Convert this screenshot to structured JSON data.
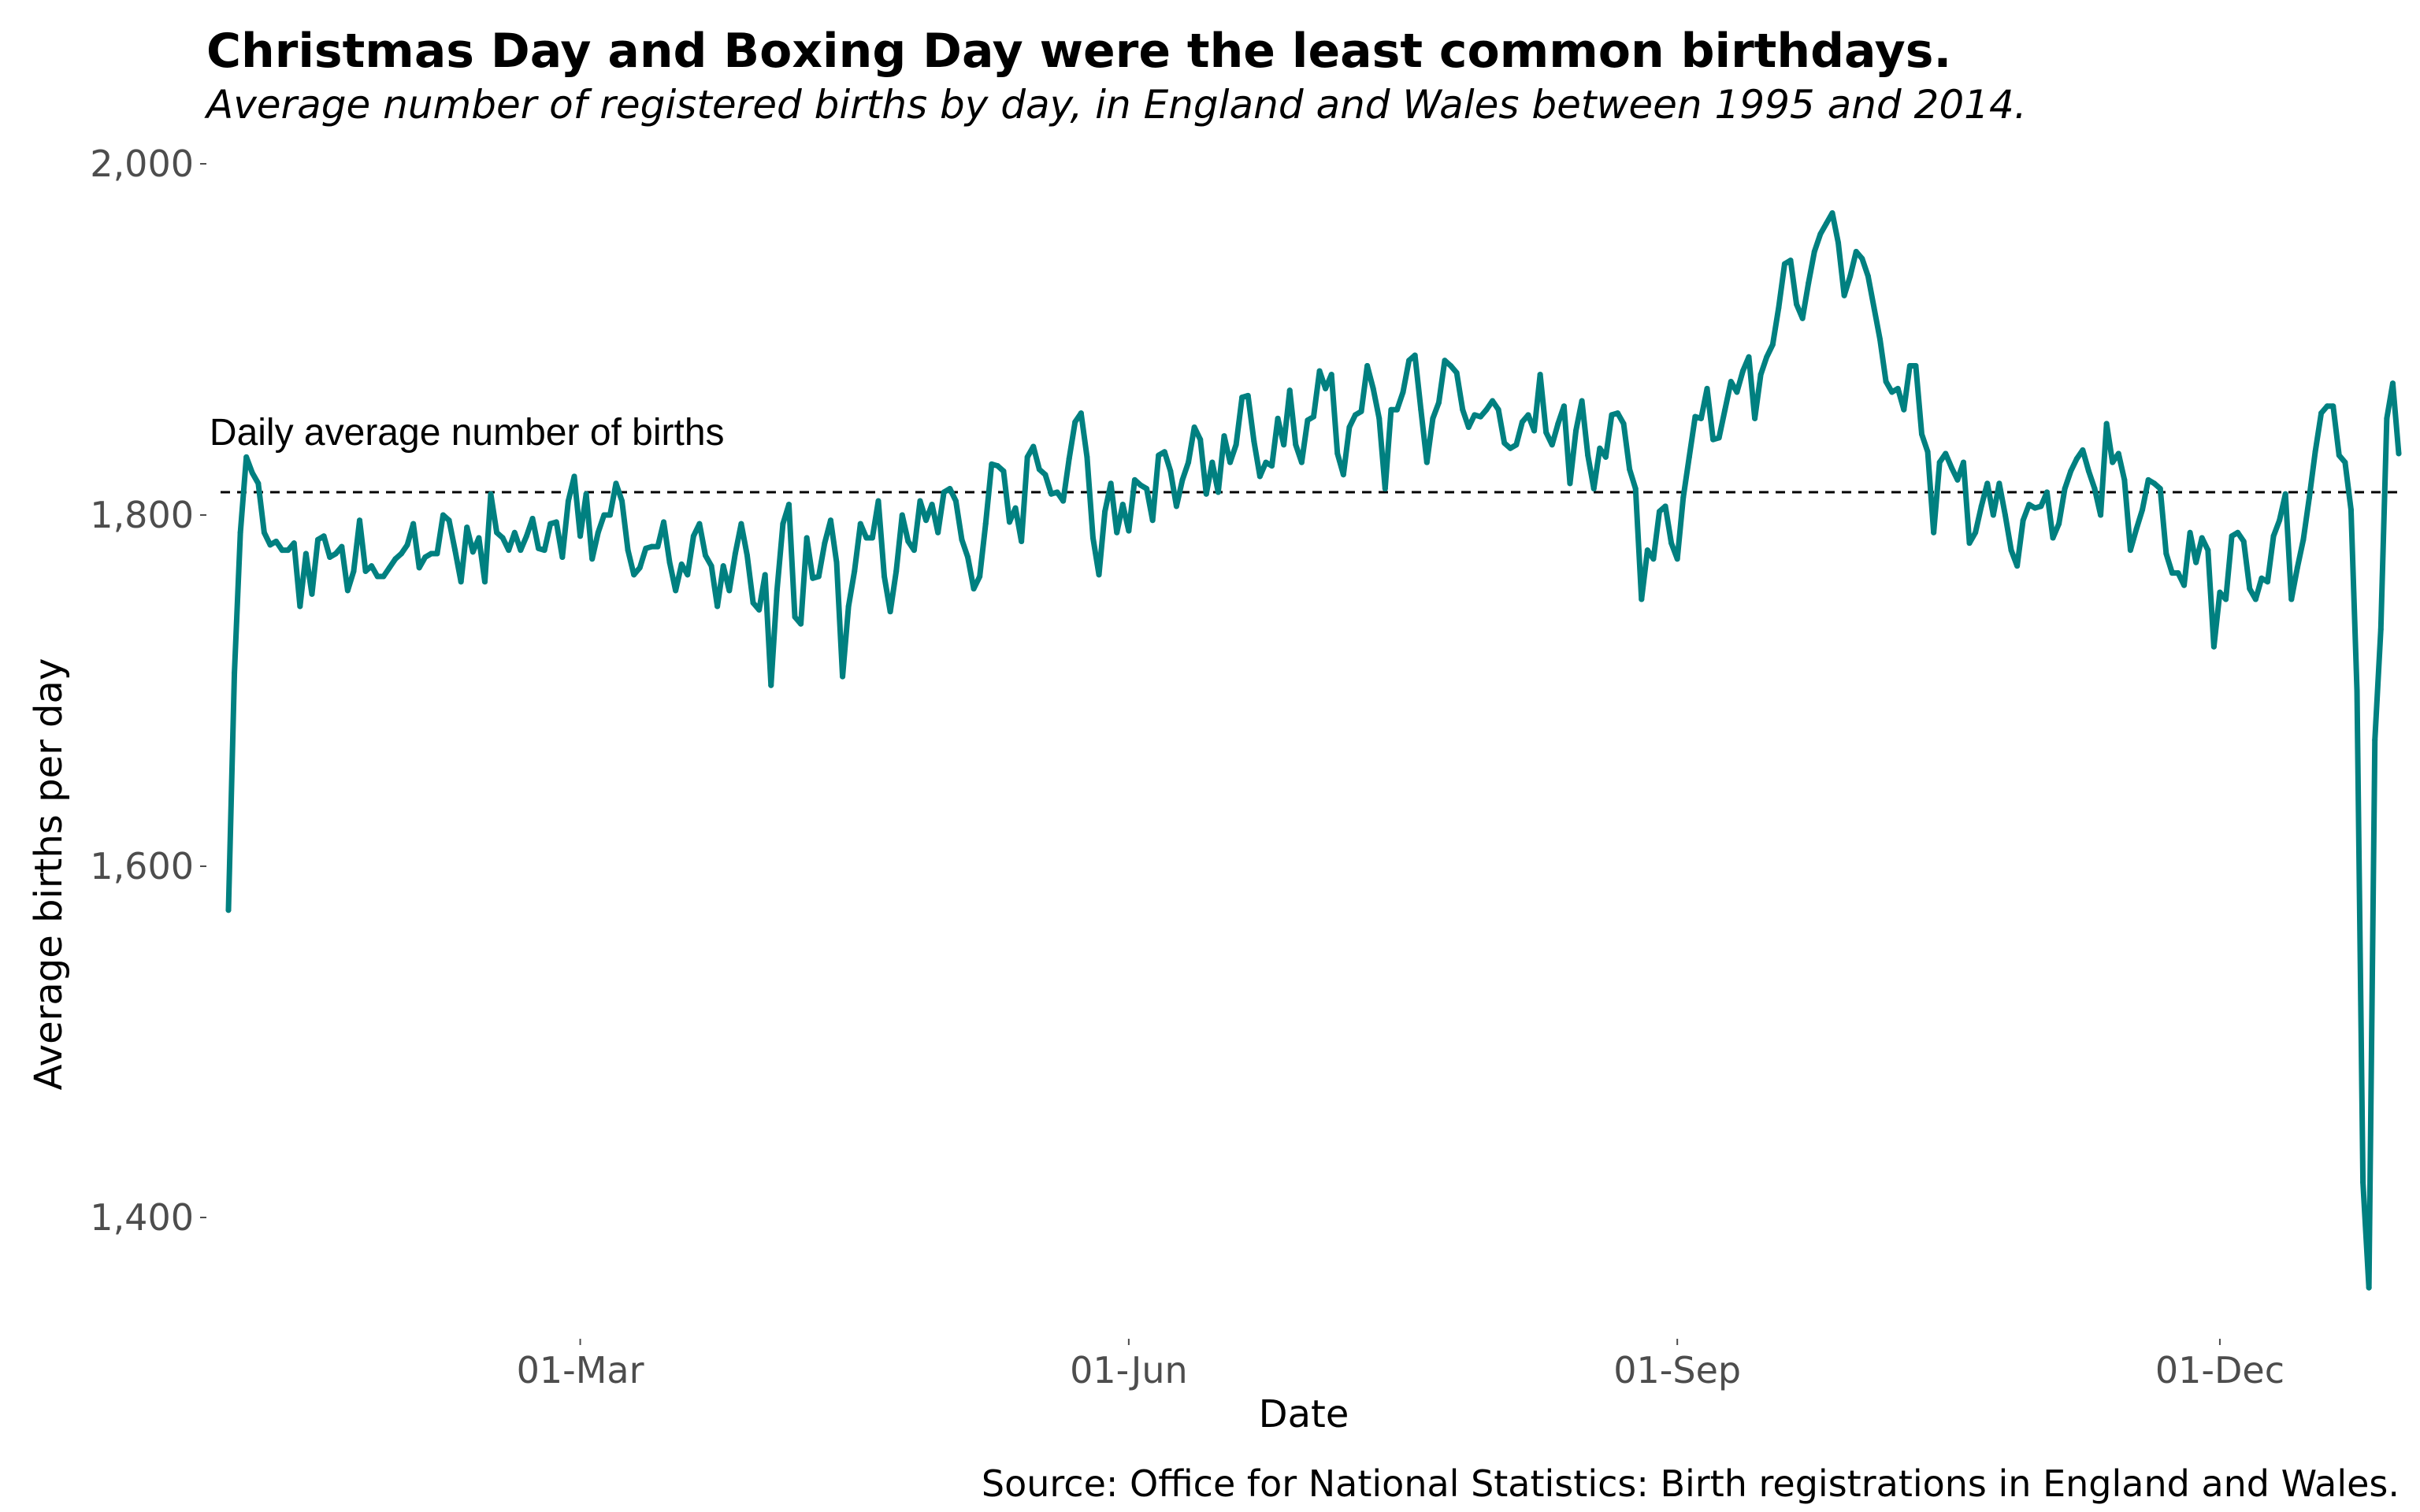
{
  "chart_data": {
    "type": "line",
    "title": "Christmas Day and Boxing Day were the least common birthdays.",
    "subtitle": "Average number of registered births by day, in England and Wales between 1995 and 2014.",
    "xlabel": "Date",
    "ylabel": "Average births per day",
    "caption": "Source: Office for National Statistics: Birth registrations in England and Wales.",
    "xlim": [
      "2023-01-01",
      "2023-12-31"
    ],
    "ylim": [
      1340,
      2000
    ],
    "y_ticks": [
      {
        "value": 1400,
        "label": "1,400"
      },
      {
        "value": 1600,
        "label": "1,600"
      },
      {
        "value": 1800,
        "label": "1,800"
      },
      {
        "value": 2000,
        "label": "2,000"
      }
    ],
    "x_ticks": [
      {
        "value": "2023-03-01",
        "label": "01-Mar"
      },
      {
        "value": "2023-06-01",
        "label": "01-Jun"
      },
      {
        "value": "2023-09-01",
        "label": "01-Sep"
      },
      {
        "value": "2023-12-01",
        "label": "01-Dec"
      }
    ],
    "reference_line": {
      "value": 1813,
      "style": "dashed",
      "label": "Daily average number of births"
    },
    "grid": false,
    "legend": "none",
    "colors": {
      "line": "#008080",
      "reference": "#000000"
    },
    "series": [
      {
        "start": "2023-01-01",
        "values": [
          1575,
          1710,
          1790,
          1833,
          1824,
          1818,
          1790,
          1783,
          1785,
          1780,
          1780,
          1784,
          1748,
          1778,
          1755,
          1786,
          1788,
          1776,
          1778,
          1782,
          1757,
          1768,
          1797,
          1768,
          1771,
          1765,
          1765,
          1770,
          1775,
          1778,
          1783,
          1795,
          1770,
          1776,
          1778,
          1778,
          1800,
          1797,
          1780,
          1762,
          1793,
          1779,
          1787,
          1762,
          1812,
          1790,
          1787,
          1780,
          1790,
          1780,
          1788,
          1798,
          1781,
          1780,
          1795,
          1796,
          1776,
          1808,
          1822,
          1788,
          1812,
          1775,
          1790,
          1800,
          1800,
          1818,
          1808,
          1780,
          1766,
          1770,
          1781,
          1782,
          1782,
          1796,
          1773,
          1757,
          1772,
          1766,
          1788,
          1795,
          1777,
          1771,
          1748,
          1771,
          1757,
          1778,
          1795,
          1777,
          1750,
          1746,
          1766,
          1703,
          1757,
          1795,
          1806,
          1742,
          1738,
          1787,
          1764,
          1765,
          1784,
          1797,
          1773,
          1708,
          1748,
          1768,
          1795,
          1787,
          1787,
          1808,
          1765,
          1745,
          1768,
          1800,
          1785,
          1780,
          1808,
          1797,
          1806,
          1790,
          1813,
          1815,
          1808,
          1786,
          1776,
          1758,
          1765,
          1795,
          1829,
          1828,
          1825,
          1796,
          1804,
          1785,
          1833,
          1839,
          1826,
          1823,
          1812,
          1813,
          1808,
          1832,
          1853,
          1858,
          1833,
          1787,
          1766,
          1802,
          1818,
          1790,
          1806,
          1791,
          1820,
          1817,
          1815,
          1797,
          1834,
          1836,
          1825,
          1805,
          1820,
          1830,
          1850,
          1843,
          1812,
          1830,
          1813,
          1845,
          1830,
          1840,
          1867,
          1868,
          1842,
          1822,
          1830,
          1828,
          1855,
          1840,
          1871,
          1840,
          1830,
          1854,
          1856,
          1882,
          1872,
          1880,
          1835,
          1823,
          1850,
          1857,
          1859,
          1885,
          1872,
          1855,
          1815,
          1860,
          1860,
          1870,
          1888,
          1891,
          1860,
          1830,
          1855,
          1864,
          1888,
          1885,
          1881,
          1860,
          1850,
          1857,
          1856,
          1860,
          1865,
          1860,
          1841,
          1838,
          1840,
          1853,
          1857,
          1848,
          1880,
          1847,
          1840,
          1852,
          1862,
          1818,
          1848,
          1865,
          1834,
          1815,
          1838,
          1833,
          1857,
          1858,
          1852,
          1826,
          1815,
          1752,
          1780,
          1775,
          1802,
          1805,
          1784,
          1775,
          1810,
          1833,
          1856,
          1855,
          1872,
          1843,
          1844,
          1860,
          1876,
          1870,
          1882,
          1890,
          1855,
          1880,
          1890,
          1897,
          1918,
          1943,
          1945,
          1920,
          1912,
          1932,
          1950,
          1960,
          1966,
          1972,
          1955,
          1925,
          1936,
          1950,
          1946,
          1936,
          1918,
          1900,
          1876,
          1870,
          1872,
          1860,
          1885,
          1885,
          1846,
          1836,
          1790,
          1830,
          1835,
          1827,
          1820,
          1830,
          1784,
          1790,
          1805,
          1818,
          1800,
          1818,
          1800,
          1780,
          1771,
          1797,
          1806,
          1804,
          1805,
          1813,
          1787,
          1795,
          1815,
          1825,
          1832,
          1837,
          1825,
          1815,
          1800,
          1852,
          1830,
          1835,
          1820,
          1780,
          1792,
          1803,
          1820,
          1818,
          1815,
          1778,
          1767,
          1767,
          1760,
          1790,
          1773,
          1787,
          1780,
          1725,
          1756,
          1752,
          1788,
          1790,
          1785,
          1758,
          1752,
          1764,
          1762,
          1788,
          1797,
          1812,
          1752,
          1770,
          1786,
          1810,
          1836,
          1858,
          1862,
          1862,
          1834,
          1830,
          1803,
          1700,
          1420,
          1360,
          1672,
          1735,
          1855,
          1875,
          1835
        ]
      }
    ]
  }
}
